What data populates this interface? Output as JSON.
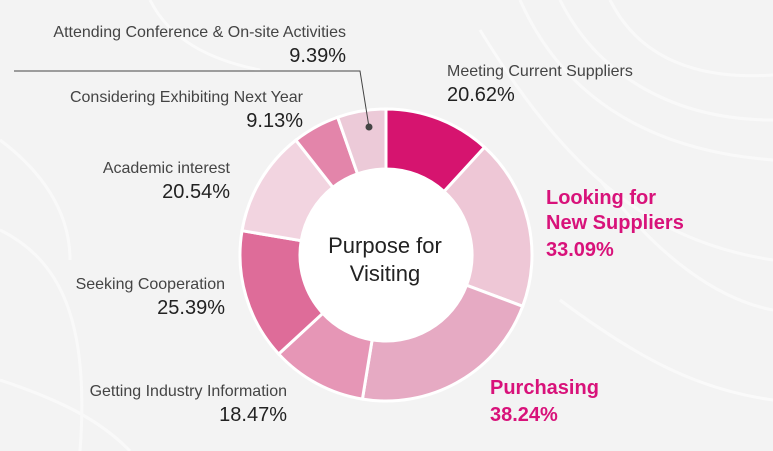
{
  "chart_data": {
    "type": "pie",
    "title": "Purpose for Visiting",
    "slices": [
      {
        "label": "Meeting Current Suppliers",
        "value_label": "20.62%",
        "value": 20.62,
        "color": "#d6146f"
      },
      {
        "label": "Looking for New Suppliers",
        "value_label": "33.09%",
        "value": 33.09,
        "color": "#eec7d6",
        "highlight": true
      },
      {
        "label": "Purchasing",
        "value_label": "38.24%",
        "value": 38.24,
        "color": "#e6aac3",
        "highlight": true
      },
      {
        "label": "Getting Industry Information",
        "value_label": "18.47%",
        "value": 18.47,
        "color": "#e696b6"
      },
      {
        "label": "Seeking Cooperation",
        "value_label": "25.39%",
        "value": 25.39,
        "color": "#de6c99"
      },
      {
        "label": "Academic interest",
        "value_label": "20.54%",
        "value": 20.54,
        "color": "#f2d4e0"
      },
      {
        "label": "Considering Exhibiting Next Year",
        "value_label": "9.13%",
        "value": 9.13,
        "color": "#e385aa"
      },
      {
        "label": "Attending Conference & On-site Activities",
        "value_label": "9.39%",
        "value": 9.39,
        "color": "#eccad8"
      }
    ]
  }
}
